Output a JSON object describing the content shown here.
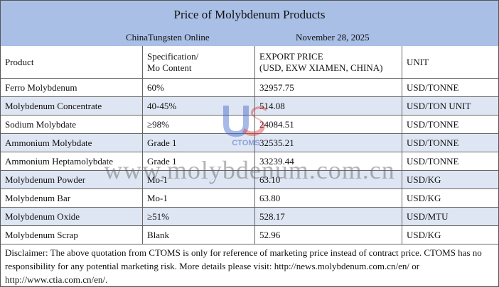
{
  "header": {
    "title": "Price of Molybdenum Products",
    "source": "ChinaTungsten Online",
    "date": "November 28, 2025"
  },
  "table": {
    "columns": [
      [
        "Product"
      ],
      [
        "Specification/",
        "Mo Content"
      ],
      [
        "EXPORT PRICE",
        "(USD, EXW XIAMEN, CHINA)"
      ],
      [
        "UNIT"
      ]
    ],
    "rows": [
      [
        "Ferro Molybdenum",
        "60%",
        "32957.75",
        "USD/TONNE"
      ],
      [
        "Molybdenum Concentrate",
        "40-45%",
        "514.08",
        "USD/TON UNIT"
      ],
      [
        "Sodium Molybdate",
        "≥98%",
        "24084.51",
        "USD/TONNE"
      ],
      [
        "Ammonium Molybdate",
        "Grade 1",
        "32535.21",
        "USD/TONNE"
      ],
      [
        "Ammonium Heptamolybdate",
        "Grade 1",
        "33239.44",
        "USD/TONNE"
      ],
      [
        "Molybdenum Powder",
        "Mo-1",
        "63.10",
        "USD/KG"
      ],
      [
        "Molybdenum Bar",
        "Mo-1",
        "63.80",
        "USD/KG"
      ],
      [
        "Molybdenum Oxide",
        "≥51%",
        "528.17",
        "USD/MTU"
      ],
      [
        "Molybdenum Scrap",
        "Blank",
        "52.96",
        "USD/KG"
      ]
    ]
  },
  "disclaimer": "Disclaimer: The above quotation from CTOMS is only for reference of marketing price instead of contract price. CTOMS has no responsibility for any potential marketing risk. More details please visit: http://news.molybdenum.com.cn/en/ or http://www.ctia.com.cn/en/.",
  "watermark": {
    "text": "www.molybdenum.com.cn",
    "logo": "CTOMS"
  }
}
